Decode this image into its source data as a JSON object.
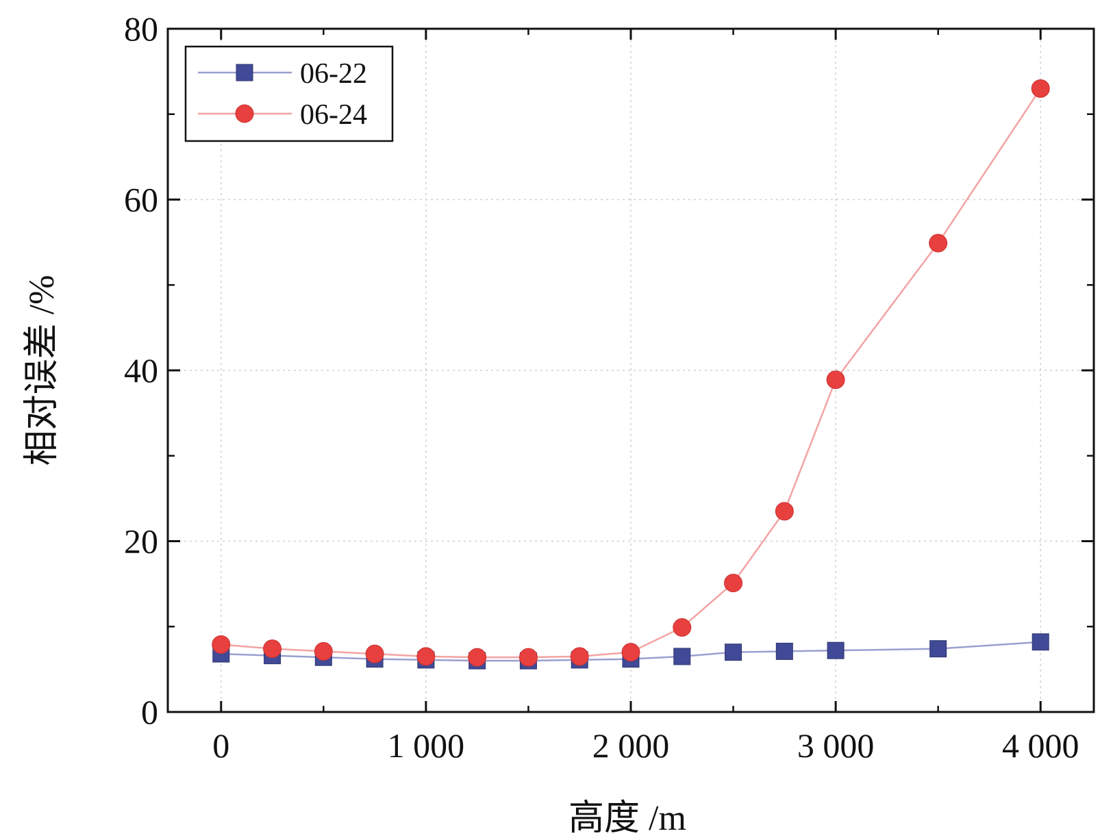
{
  "chart_data": {
    "type": "line",
    "title": "",
    "xlabel": "高度 /m",
    "ylabel": "相对误差 /%",
    "xlim": [
      -260,
      4260
    ],
    "ylim": [
      0,
      80
    ],
    "xticks": [
      0,
      1000,
      2000,
      3000,
      4000
    ],
    "xtick_labels": [
      "0",
      "1 000",
      "2 000",
      "3 000",
      "4 000"
    ],
    "yticks": [
      0,
      20,
      40,
      60,
      80
    ],
    "ytick_labels": [
      "0",
      "20",
      "40",
      "60",
      "80"
    ],
    "grid": true,
    "legend_position": "top-left",
    "series": [
      {
        "name": "06-22",
        "color": "#414a96",
        "line_color": "#9a9fd0",
        "marker": "square",
        "x": [
          0,
          250,
          500,
          750,
          1000,
          1250,
          1500,
          1750,
          2000,
          2250,
          2500,
          2750,
          3000,
          3500,
          4000
        ],
        "y": [
          6.8,
          6.6,
          6.4,
          6.2,
          6.1,
          6.0,
          6.0,
          6.1,
          6.2,
          6.5,
          7.0,
          7.1,
          7.2,
          7.4,
          8.2
        ]
      },
      {
        "name": "06-24",
        "color": "#e8403f",
        "line_color": "#f3a3a3",
        "marker": "circle",
        "x": [
          0,
          250,
          500,
          750,
          1000,
          1250,
          1500,
          1750,
          2000,
          2250,
          2500,
          2750,
          3000,
          3500,
          4000
        ],
        "y": [
          7.9,
          7.4,
          7.1,
          6.8,
          6.5,
          6.4,
          6.4,
          6.5,
          7.0,
          9.9,
          15.1,
          23.5,
          38.9,
          54.9,
          73.0
        ]
      }
    ]
  }
}
